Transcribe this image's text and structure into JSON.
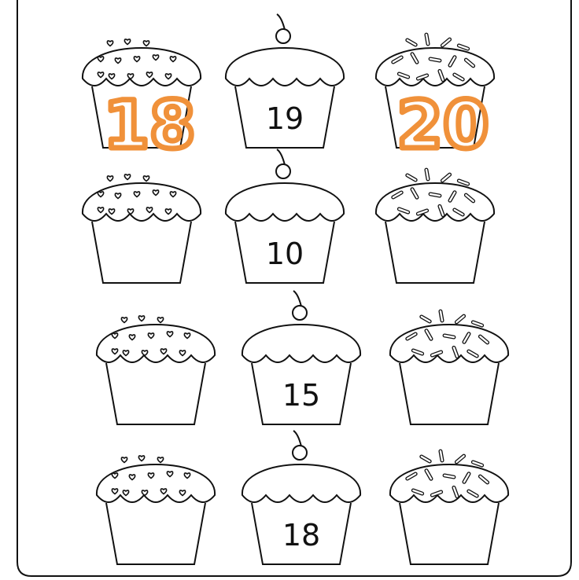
{
  "worksheet": {
    "grid": [
      [
        {
          "type": "hearts",
          "number": "",
          "handwritten": "18"
        },
        {
          "type": "cherry",
          "number": "19",
          "handwritten": ""
        },
        {
          "type": "sprinkles",
          "number": "",
          "handwritten": "20"
        }
      ],
      [
        {
          "type": "hearts",
          "number": "",
          "handwritten": ""
        },
        {
          "type": "cherry",
          "number": "10",
          "handwritten": ""
        },
        {
          "type": "sprinkles",
          "number": "",
          "handwritten": ""
        }
      ],
      [
        {
          "type": "hearts",
          "number": "",
          "handwritten": ""
        },
        {
          "type": "cherry",
          "number": "15",
          "handwritten": ""
        },
        {
          "type": "sprinkles",
          "number": "",
          "handwritten": ""
        }
      ],
      [
        {
          "type": "hearts",
          "number": "",
          "handwritten": ""
        },
        {
          "type": "cherry",
          "number": "18",
          "handwritten": ""
        },
        {
          "type": "sprinkles",
          "number": "",
          "handwritten": ""
        }
      ]
    ]
  },
  "colors": {
    "ink": "#111111",
    "handwriting": "#f0913a",
    "paper": "#ffffff"
  }
}
